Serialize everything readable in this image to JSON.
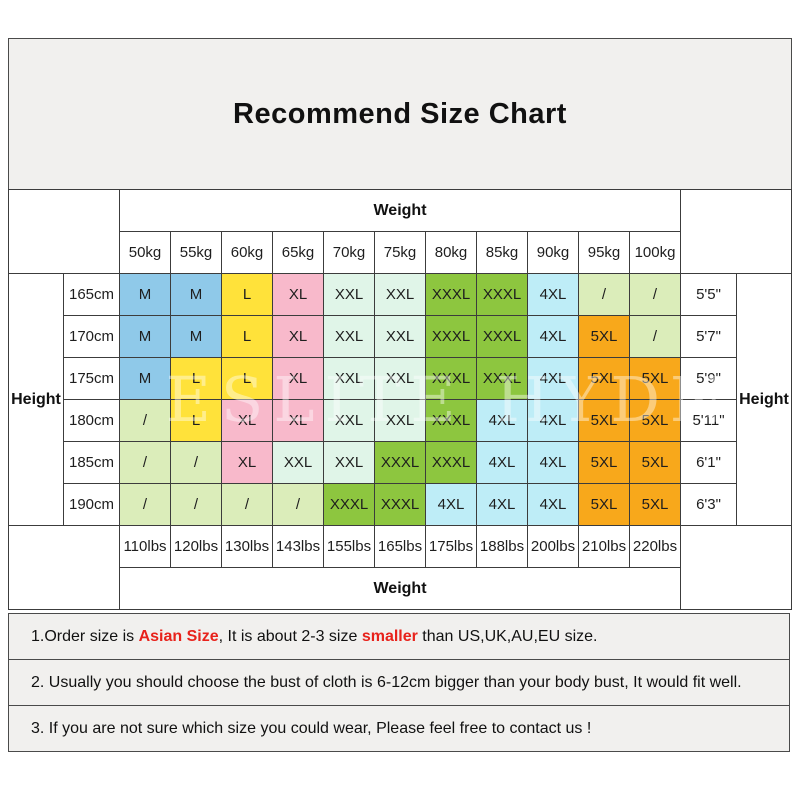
{
  "title_box": {
    "title": "Recommend Size Chart"
  },
  "watermark": {
    "text": "ESLITE HYDN"
  },
  "chart_data": {
    "type": "table",
    "title": "Recommend Size Chart",
    "top_header": "Weight",
    "bottom_header": "Weight",
    "left_header": "Height",
    "right_header": "Height",
    "weight_kg": [
      "50kg",
      "55kg",
      "60kg",
      "65kg",
      "70kg",
      "75kg",
      "80kg",
      "85kg",
      "90kg",
      "95kg",
      "100kg"
    ],
    "weight_lbs": [
      "110lbs",
      "120lbs",
      "130lbs",
      "143lbs",
      "155lbs",
      "165lbs",
      "175lbs",
      "188lbs",
      "200lbs",
      "210lbs",
      "220lbs"
    ],
    "cell_colors": {
      "blue": "#8FC9E9",
      "yellow": "#FFE23A",
      "pink": "#F8B9CB",
      "mint": "#E0F5E8",
      "green": "#8DC63F",
      "cyan": "#BEEDF7",
      "palegreen": "#DBEDBA",
      "orange": "#F8A81B",
      "white": "#FFFFFF"
    },
    "rows": [
      {
        "height_cm": "165cm",
        "height_ft": "5'5\"",
        "cells": [
          [
            "M",
            "blue"
          ],
          [
            "M",
            "blue"
          ],
          [
            "L",
            "yellow"
          ],
          [
            "XL",
            "pink"
          ],
          [
            "XXL",
            "mint"
          ],
          [
            "XXL",
            "mint"
          ],
          [
            "XXXL",
            "green"
          ],
          [
            "XXXL",
            "green"
          ],
          [
            "4XL",
            "cyan"
          ],
          [
            "/",
            "palegreen"
          ],
          [
            "/",
            "palegreen"
          ]
        ]
      },
      {
        "height_cm": "170cm",
        "height_ft": "5'7\"",
        "cells": [
          [
            "M",
            "blue"
          ],
          [
            "M",
            "blue"
          ],
          [
            "L",
            "yellow"
          ],
          [
            "XL",
            "pink"
          ],
          [
            "XXL",
            "mint"
          ],
          [
            "XXL",
            "mint"
          ],
          [
            "XXXL",
            "green"
          ],
          [
            "XXXL",
            "green"
          ],
          [
            "4XL",
            "cyan"
          ],
          [
            "5XL",
            "orange"
          ],
          [
            "/",
            "palegreen"
          ]
        ]
      },
      {
        "height_cm": "175cm",
        "height_ft": "5'9\"",
        "cells": [
          [
            "M",
            "blue"
          ],
          [
            "L",
            "yellow"
          ],
          [
            "L",
            "yellow"
          ],
          [
            "XL",
            "pink"
          ],
          [
            "XXL",
            "mint"
          ],
          [
            "XXL",
            "mint"
          ],
          [
            "XXXL",
            "green"
          ],
          [
            "XXXL",
            "green"
          ],
          [
            "4XL",
            "cyan"
          ],
          [
            "5XL",
            "orange"
          ],
          [
            "5XL",
            "orange"
          ]
        ]
      },
      {
        "height_cm": "180cm",
        "height_ft": "5'11\"",
        "cells": [
          [
            "/",
            "palegreen"
          ],
          [
            "L",
            "yellow"
          ],
          [
            "XL",
            "pink"
          ],
          [
            "XL",
            "pink"
          ],
          [
            "XXL",
            "mint"
          ],
          [
            "XXL",
            "mint"
          ],
          [
            "XXXL",
            "green"
          ],
          [
            "4XL",
            "cyan"
          ],
          [
            "4XL",
            "cyan"
          ],
          [
            "5XL",
            "orange"
          ],
          [
            "5XL",
            "orange"
          ]
        ]
      },
      {
        "height_cm": "185cm",
        "height_ft": "6'1\"",
        "cells": [
          [
            "/",
            "palegreen"
          ],
          [
            "/",
            "palegreen"
          ],
          [
            "XL",
            "pink"
          ],
          [
            "XXL",
            "mint"
          ],
          [
            "XXL",
            "mint"
          ],
          [
            "XXXL",
            "green"
          ],
          [
            "XXXL",
            "green"
          ],
          [
            "4XL",
            "cyan"
          ],
          [
            "4XL",
            "cyan"
          ],
          [
            "5XL",
            "orange"
          ],
          [
            "5XL",
            "orange"
          ]
        ]
      },
      {
        "height_cm": "190cm",
        "height_ft": "6'3\"",
        "cells": [
          [
            "/",
            "palegreen"
          ],
          [
            "/",
            "palegreen"
          ],
          [
            "/",
            "palegreen"
          ],
          [
            "/",
            "palegreen"
          ],
          [
            "XXXL",
            "green"
          ],
          [
            "XXXL",
            "green"
          ],
          [
            "4XL",
            "cyan"
          ],
          [
            "4XL",
            "cyan"
          ],
          [
            "4XL",
            "cyan"
          ],
          [
            "5XL",
            "orange"
          ],
          [
            "5XL",
            "orange"
          ]
        ]
      }
    ]
  },
  "notes": [
    {
      "segments": [
        {
          "text": "1.Order size is ",
          "red": false
        },
        {
          "text": "Asian Size",
          "red": true
        },
        {
          "text": ", It is about 2-3 size ",
          "red": false
        },
        {
          "text": "smaller",
          "red": true
        },
        {
          "text": " than US,UK,AU,EU size.",
          "red": false
        }
      ]
    },
    {
      "segments": [
        {
          "text": "2. Usually you should choose the bust of cloth is 6-12cm bigger than your body bust, It would fit well.",
          "red": false
        }
      ]
    },
    {
      "segments": [
        {
          "text": "3. If you are not sure which size you could wear, Please feel free to contact us !",
          "red": false
        }
      ]
    }
  ]
}
